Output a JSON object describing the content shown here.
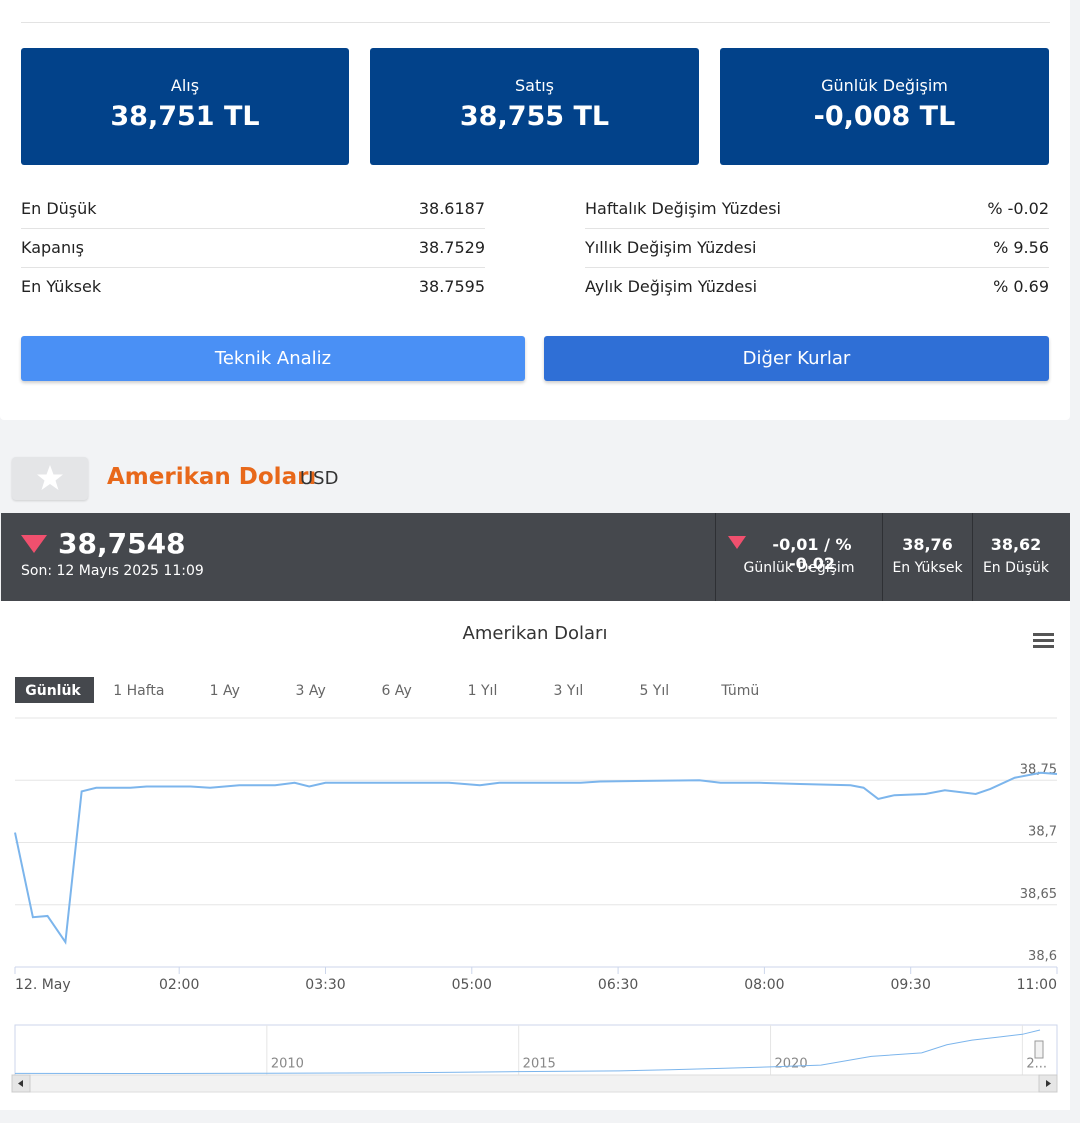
{
  "header_cards": [
    {
      "label": "Alış",
      "value": "38,751 TL"
    },
    {
      "label": "Satış",
      "value": "38,755 TL"
    },
    {
      "label": "Günlük Değişim",
      "value": "-0,008 TL"
    }
  ],
  "stats_left": [
    [
      "En Düşük",
      "38.6187"
    ],
    [
      "Kapanış",
      "38.7529"
    ],
    [
      "En Yüksek",
      "38.7595"
    ]
  ],
  "stats_right": [
    [
      "Haftalık Değişim Yüzdesi",
      "% -0.02"
    ],
    [
      "Yıllık Değişim Yüzdesi",
      "% 9.56"
    ],
    [
      "Aylık Değişim Yüzdesi",
      "% 0.69"
    ]
  ],
  "buttons": [
    "Teknik Analiz",
    "Diğer Kurlar"
  ],
  "currency": {
    "name": "Amerikan Doları",
    "code": "USD"
  },
  "quote": {
    "price": "38,7548",
    "updated": "Son: 12 Mayıs 2025 11:09",
    "change": "-0,01 / % -0.02",
    "change_label": "Günlük Değişim",
    "high": "38,76",
    "high_label": "En Yüksek",
    "low": "38,62",
    "low_label": "En Düşük"
  },
  "chart_data": {
    "type": "line",
    "title": "Amerikan Doları",
    "ranges": [
      "Günlük",
      "1 Hafta",
      "1 Ay",
      "3 Ay",
      "6 Ay",
      "1 Yıl",
      "3 Yıl",
      "5 Yıl",
      "Tümü"
    ],
    "selected_range": 0,
    "x": [
      19,
      30,
      39,
      50,
      60,
      69,
      90,
      100,
      127,
      139,
      157,
      179,
      191,
      200,
      210,
      256,
      286,
      305,
      317,
      367,
      379,
      440,
      453,
      477,
      502,
      533,
      541,
      550,
      560,
      579,
      591,
      610,
      619,
      634,
      650,
      660
    ],
    "values": [
      38.708,
      38.64,
      38.641,
      38.62,
      38.741,
      38.744,
      38.744,
      38.745,
      38.745,
      38.744,
      38.746,
      38.746,
      38.748,
      38.745,
      38.748,
      38.748,
      38.748,
      38.746,
      38.748,
      38.748,
      38.749,
      38.75,
      38.748,
      38.748,
      38.747,
      38.746,
      38.744,
      38.735,
      38.738,
      38.739,
      38.742,
      38.739,
      38.743,
      38.752,
      38.756,
      38.755
    ],
    "color": "#7cb5ec",
    "xlim": [
      19,
      660
    ],
    "xticks": [
      {
        "value": 19,
        "label": "12. May"
      },
      {
        "value": 120,
        "label": "02:00"
      },
      {
        "value": 210,
        "label": "03:30"
      },
      {
        "value": 300,
        "label": "05:00"
      },
      {
        "value": 390,
        "label": "06:30"
      },
      {
        "value": 480,
        "label": "08:00"
      },
      {
        "value": 570,
        "label": "09:30"
      },
      {
        "value": 660,
        "label": "11:00"
      }
    ],
    "ylim": [
      38.6,
      38.8
    ],
    "yticks": [
      {
        "value": 38.6,
        "label": "38,6"
      },
      {
        "value": 38.65,
        "label": "38,65"
      },
      {
        "value": 38.7,
        "label": "38,7"
      },
      {
        "value": 38.75,
        "label": "38,75"
      }
    ],
    "grid": true
  },
  "navigator": {
    "type": "line",
    "x": [
      2005,
      2008,
      2010,
      2013,
      2015,
      2017,
      2018,
      2019,
      2020,
      2021,
      2022,
      2023,
      2023.5,
      2024,
      2024.5,
      2025,
      2025.35
    ],
    "values": [
      1.35,
      1.3,
      1.5,
      2.0,
      2.9,
      3.6,
      4.5,
      5.7,
      7.0,
      8.5,
      16,
      19,
      26,
      30,
      32.5,
      35,
      38.7
    ],
    "color": "#7cb5ec",
    "xlim": [
      2005,
      2025.35
    ],
    "ylim": [
      0,
      43
    ],
    "xticks": [
      2010,
      2015,
      2020,
      {
        "value": 2025,
        "label": "2..."
      }
    ]
  }
}
